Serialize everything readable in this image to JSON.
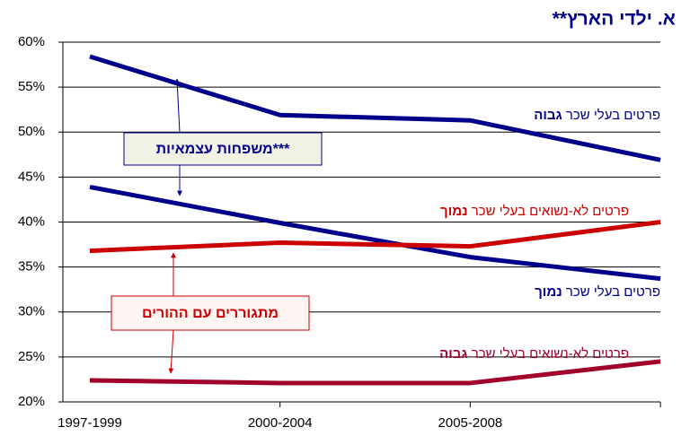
{
  "chart_data": {
    "type": "line",
    "title": "א. ילדי הארץ**",
    "categories": [
      "1997-1999",
      "2000-2004",
      "2005-2008",
      null
    ],
    "series": [
      {
        "name": "פרטים בעלי שכר גבוה",
        "color": "#00008b",
        "values": [
          58.4,
          51.9,
          51.3,
          46.9
        ]
      },
      {
        "name": "פרטים בעלי שכר נמוך",
        "color": "#00008b",
        "values": [
          43.9,
          39.9,
          36.1,
          33.7
        ]
      },
      {
        "name": "פרטים לא-נשואים בעלי שכר נמוך",
        "color": "#cc0000",
        "values": [
          36.8,
          37.7,
          37.3,
          40.0
        ]
      },
      {
        "name": "פרטים לא-נשואים בעלי שכר גבוה",
        "color": "#a0002a",
        "values": [
          22.4,
          22.1,
          22.1,
          24.5
        ]
      }
    ],
    "annotations": [
      "משפחות עצמאיות***",
      "מתגוררים עם ההורים"
    ],
    "ylim": [
      20,
      60
    ],
    "yticks": [
      {
        "value": 20,
        "label": "20%"
      },
      {
        "value": 25,
        "label": "25%"
      },
      {
        "value": 30,
        "label": "30%"
      },
      {
        "value": 35,
        "label": "35%"
      },
      {
        "value": 40,
        "label": "40%"
      },
      {
        "value": 45,
        "label": "45%"
      },
      {
        "value": 50,
        "label": "50%"
      },
      {
        "value": 55,
        "label": "55%"
      },
      {
        "value": 60,
        "label": "60%"
      }
    ],
    "grid": true
  }
}
